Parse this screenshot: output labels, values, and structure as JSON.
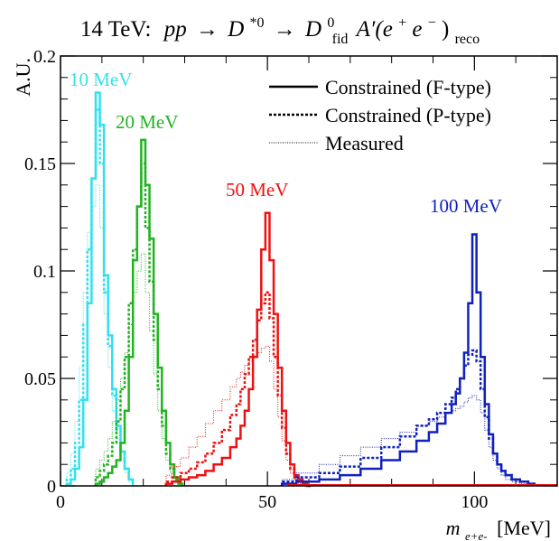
{
  "chart_data": {
    "type": "line",
    "title": "14 TeV: pp → D*0 → D0fid A′(e+e−)reco",
    "title_parts": {
      "prefix": "14 TeV:",
      "pp": "pp",
      "arrow": "→",
      "d": "D",
      "d_sup": "*0",
      "d0": "D",
      "d0_sup": "0",
      "d0_sub": "fid",
      "aprime": "A′(e",
      "ee_sup1": "+",
      "ee_mid": "e",
      "ee_sup2": "−",
      "ee_close": ")",
      "reco_sub": "reco"
    },
    "xlabel": "m",
    "xlabel_sub": "e+e-",
    "xlabel_unit": "[MeV]",
    "ylabel": "A.U.",
    "xlim": [
      0,
      120
    ],
    "ylim": [
      0,
      0.2
    ],
    "x_ticks": [
      "0",
      "50",
      "100"
    ],
    "y_ticks": [
      "0",
      "0.05",
      "0.1",
      "0.15",
      "0.2"
    ],
    "legend": {
      "placement": "top-right",
      "entries": [
        {
          "label": "Constrained (F-type)",
          "style": "solid"
        },
        {
          "label": "Constrained (P-type)",
          "style": "dashed"
        },
        {
          "label": "Measured",
          "style": "dotted"
        }
      ]
    },
    "annotations": [
      {
        "text": "10 MeV",
        "color": "#33e0ee"
      },
      {
        "text": "20 MeV",
        "color": "#22b322"
      },
      {
        "text": "50 MeV",
        "color": "#ee1111"
      },
      {
        "text": "100 MeV",
        "color": "#1122bb"
      }
    ],
    "series": [
      {
        "mass": 10,
        "color": "#33e0ee",
        "type": "F-type",
        "style": "solid",
        "x": [
          2,
          3,
          4,
          5,
          6,
          7,
          8,
          9,
          10,
          11,
          12,
          13,
          14,
          15,
          16,
          17
        ],
        "values": [
          0.001,
          0.003,
          0.008,
          0.018,
          0.04,
          0.085,
          0.143,
          0.183,
          0.168,
          0.098,
          0.07,
          0.045,
          0.028,
          0.016,
          0.008,
          0.003
        ]
      },
      {
        "mass": 10,
        "color": "#33e0ee",
        "type": "P-type",
        "style": "dashed",
        "x": [
          2,
          3,
          4,
          5,
          6,
          7,
          8,
          9,
          10,
          11,
          12,
          13,
          14,
          15,
          16,
          17
        ],
        "values": [
          0.003,
          0.008,
          0.02,
          0.04,
          0.075,
          0.11,
          0.143,
          0.175,
          0.15,
          0.09,
          0.065,
          0.042,
          0.026,
          0.015,
          0.008,
          0.003
        ]
      },
      {
        "mass": 10,
        "color": "#33e0ee",
        "type": "Measured",
        "style": "dotted",
        "x": [
          2,
          3,
          4,
          5,
          6,
          7,
          8,
          9,
          10,
          11,
          12,
          13,
          14,
          15,
          16,
          17
        ],
        "values": [
          0.006,
          0.015,
          0.03,
          0.055,
          0.09,
          0.118,
          0.13,
          0.14,
          0.12,
          0.08,
          0.055,
          0.035,
          0.022,
          0.012,
          0.006,
          0.002
        ]
      },
      {
        "mass": 20,
        "color": "#22b322",
        "type": "F-type",
        "style": "solid",
        "x": [
          9,
          10,
          11,
          12,
          13,
          14,
          15,
          16,
          17,
          18,
          19,
          20,
          21,
          22,
          23,
          24,
          25,
          26,
          27,
          28,
          29
        ],
        "values": [
          0.001,
          0.002,
          0.004,
          0.006,
          0.009,
          0.012,
          0.02,
          0.035,
          0.06,
          0.105,
          0.13,
          0.161,
          0.14,
          0.115,
          0.08,
          0.055,
          0.035,
          0.02,
          0.01,
          0.004,
          0.001
        ]
      },
      {
        "mass": 20,
        "color": "#22b322",
        "type": "P-type",
        "style": "dashed",
        "x": [
          9,
          10,
          11,
          12,
          13,
          14,
          15,
          16,
          17,
          18,
          19,
          20,
          21,
          22,
          23,
          24,
          25,
          26,
          27,
          28,
          29
        ],
        "values": [
          0.004,
          0.007,
          0.01,
          0.014,
          0.02,
          0.03,
          0.045,
          0.06,
          0.085,
          0.11,
          0.13,
          0.15,
          0.12,
          0.095,
          0.068,
          0.045,
          0.028,
          0.015,
          0.008,
          0.003,
          0.001
        ]
      },
      {
        "mass": 20,
        "color": "#22b322",
        "type": "Measured",
        "style": "dotted",
        "x": [
          9,
          10,
          11,
          12,
          13,
          14,
          15,
          16,
          17,
          18,
          19,
          20,
          21,
          22,
          23,
          24,
          25,
          26,
          27,
          28,
          29
        ],
        "values": [
          0.008,
          0.012,
          0.016,
          0.022,
          0.03,
          0.04,
          0.05,
          0.062,
          0.075,
          0.09,
          0.1,
          0.108,
          0.09,
          0.072,
          0.052,
          0.035,
          0.022,
          0.012,
          0.006,
          0.002,
          0.001
        ]
      },
      {
        "mass": 50,
        "color": "#ee1111",
        "type": "F-type",
        "style": "solid",
        "x": [
          26,
          28,
          30,
          32,
          34,
          36,
          38,
          40,
          42,
          43,
          44,
          45,
          46,
          47,
          48,
          49,
          50,
          51,
          52,
          53,
          54,
          55,
          56,
          57,
          58,
          59,
          60
        ],
        "values": [
          0.001,
          0.002,
          0.003,
          0.004,
          0.005,
          0.007,
          0.01,
          0.013,
          0.018,
          0.022,
          0.028,
          0.035,
          0.045,
          0.06,
          0.082,
          0.11,
          0.127,
          0.105,
          0.08,
          0.055,
          0.035,
          0.02,
          0.01,
          0.005,
          0.003,
          0.001,
          0.0
        ]
      },
      {
        "mass": 50,
        "color": "#ee1111",
        "type": "P-type",
        "style": "dashed",
        "x": [
          26,
          28,
          30,
          32,
          34,
          36,
          38,
          40,
          42,
          43,
          44,
          45,
          46,
          47,
          48,
          49,
          50,
          51,
          52,
          53,
          54,
          55,
          56,
          57,
          58,
          59,
          60
        ],
        "values": [
          0.002,
          0.004,
          0.006,
          0.008,
          0.011,
          0.015,
          0.02,
          0.026,
          0.033,
          0.038,
          0.045,
          0.052,
          0.06,
          0.068,
          0.077,
          0.085,
          0.09,
          0.078,
          0.06,
          0.042,
          0.027,
          0.015,
          0.008,
          0.004,
          0.002,
          0.001,
          0.0
        ]
      },
      {
        "mass": 50,
        "color": "#ee1111",
        "type": "Measured",
        "style": "dotted",
        "x": [
          26,
          28,
          30,
          32,
          34,
          36,
          38,
          40,
          42,
          43,
          44,
          45,
          46,
          47,
          48,
          49,
          50,
          51,
          52,
          53,
          54,
          55,
          56,
          57,
          58,
          59,
          60
        ],
        "values": [
          0.005,
          0.009,
          0.013,
          0.018,
          0.023,
          0.029,
          0.035,
          0.04,
          0.046,
          0.05,
          0.053,
          0.056,
          0.058,
          0.06,
          0.062,
          0.064,
          0.065,
          0.058,
          0.045,
          0.032,
          0.021,
          0.012,
          0.006,
          0.003,
          0.001,
          0.0,
          0.0
        ]
      },
      {
        "mass": 100,
        "color": "#1122bb",
        "type": "F-type",
        "style": "solid",
        "x": [
          54,
          60,
          65,
          70,
          75,
          80,
          84,
          88,
          90,
          92,
          94,
          95,
          96,
          97,
          98,
          99,
          100,
          101,
          102,
          103,
          104,
          105,
          106,
          107,
          108,
          110,
          112,
          114
        ],
        "values": [
          0.001,
          0.002,
          0.003,
          0.005,
          0.008,
          0.012,
          0.016,
          0.021,
          0.025,
          0.029,
          0.034,
          0.038,
          0.043,
          0.05,
          0.062,
          0.085,
          0.117,
          0.09,
          0.06,
          0.038,
          0.024,
          0.015,
          0.01,
          0.007,
          0.005,
          0.003,
          0.002,
          0.001
        ]
      },
      {
        "mass": 100,
        "color": "#1122bb",
        "type": "P-type",
        "style": "dashed",
        "x": [
          54,
          60,
          65,
          70,
          75,
          80,
          84,
          88,
          90,
          92,
          94,
          95,
          96,
          97,
          98,
          99,
          100,
          101,
          102,
          103,
          104,
          105,
          106,
          107,
          108,
          110,
          112,
          114
        ],
        "values": [
          0.002,
          0.004,
          0.006,
          0.009,
          0.013,
          0.018,
          0.023,
          0.028,
          0.031,
          0.034,
          0.038,
          0.041,
          0.045,
          0.05,
          0.056,
          0.061,
          0.063,
          0.058,
          0.045,
          0.032,
          0.022,
          0.015,
          0.01,
          0.007,
          0.005,
          0.003,
          0.002,
          0.001
        ]
      },
      {
        "mass": 100,
        "color": "#1122bb",
        "type": "Measured",
        "style": "dotted",
        "x": [
          54,
          60,
          65,
          70,
          75,
          80,
          84,
          88,
          90,
          92,
          94,
          95,
          96,
          97,
          98,
          99,
          100,
          101,
          102,
          103,
          104,
          105,
          106,
          107,
          108,
          110,
          112,
          114
        ],
        "values": [
          0.003,
          0.006,
          0.01,
          0.014,
          0.018,
          0.022,
          0.025,
          0.028,
          0.03,
          0.032,
          0.034,
          0.035,
          0.036,
          0.037,
          0.039,
          0.041,
          0.042,
          0.04,
          0.034,
          0.026,
          0.018,
          0.012,
          0.008,
          0.005,
          0.003,
          0.002,
          0.001,
          0.0
        ]
      }
    ]
  }
}
